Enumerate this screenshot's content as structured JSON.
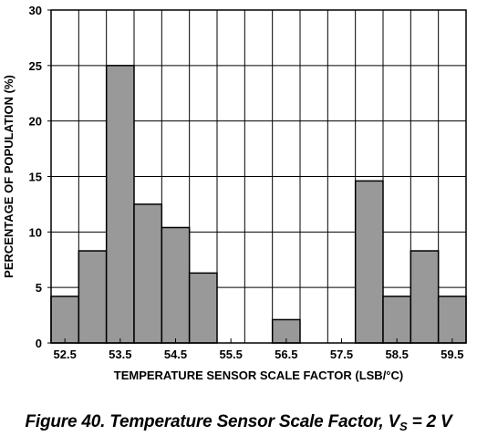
{
  "chart_data": {
    "type": "bar",
    "categories": [
      "52.5",
      "53.0",
      "53.5",
      "54.0",
      "54.5",
      "55.0",
      "55.5",
      "56.0",
      "56.5",
      "57.0",
      "57.5",
      "58.0",
      "58.5",
      "59.0",
      "59.5"
    ],
    "values": [
      4.2,
      8.3,
      25,
      12.5,
      10.4,
      6.3,
      0,
      0,
      2.1,
      0,
      0,
      14.6,
      4.2,
      8.3,
      4.2
    ],
    "x_tick_labels": [
      "52.5",
      "53.5",
      "54.5",
      "55.5",
      "56.5",
      "57.5",
      "58.5",
      "59.5"
    ],
    "y_ticks": [
      "0",
      "5",
      "10",
      "15",
      "20",
      "25",
      "30"
    ],
    "ylim": [
      0,
      30
    ],
    "xlabel": "TEMPERATURE SENSOR SCALE FACTOR (LSB/°C)",
    "ylabel": "PERCENTAGE OF POPULATION (%)",
    "grid": true,
    "bar_color": "#999999",
    "grid_color": "#000000"
  },
  "caption": {
    "prefix": "Figure 40. Temperature Sensor Scale Factor, V",
    "subscript": "S",
    "suffix": " = 2 V"
  }
}
